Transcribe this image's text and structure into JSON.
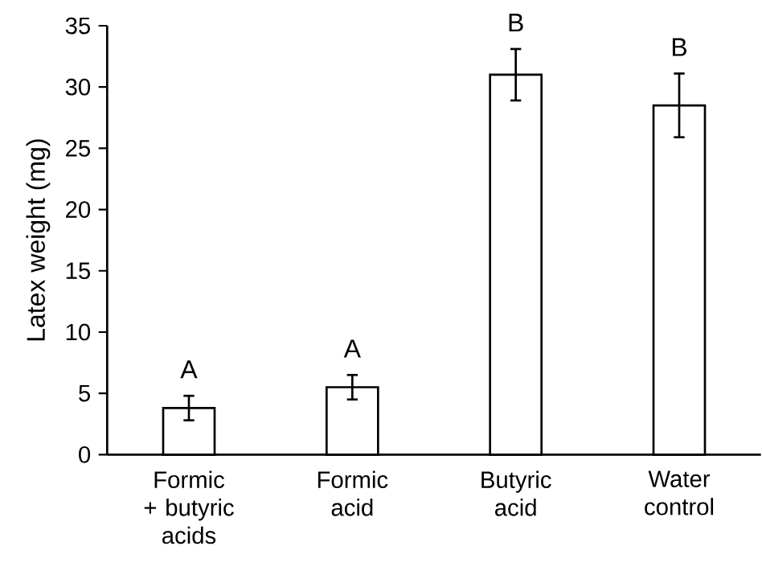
{
  "chart_data": {
    "type": "bar",
    "ylabel": "Latex weight (mg)",
    "categories": [
      "Formic + butyric acids",
      "Formic acid",
      "Butyric acid",
      "Water control"
    ],
    "values": [
      3.8,
      5.5,
      31,
      28.5
    ],
    "errors": [
      1.0,
      1.0,
      2.1,
      2.6
    ],
    "color": "#ffffff",
    "ylim": [
      0,
      35
    ],
    "yticks": [
      0,
      5,
      10,
      15,
      20,
      25,
      30,
      35
    ],
    "annotations": [
      {
        "text": "A",
        "x": "Formic + butyric acids",
        "y": 4.8
      },
      {
        "text": "A",
        "x": "Formic acid",
        "y": 6.5
      },
      {
        "text": "B",
        "x": "Butyric acid",
        "y": 33.1
      },
      {
        "text": "B",
        "x": "Water control",
        "y": 31.1
      }
    ]
  }
}
